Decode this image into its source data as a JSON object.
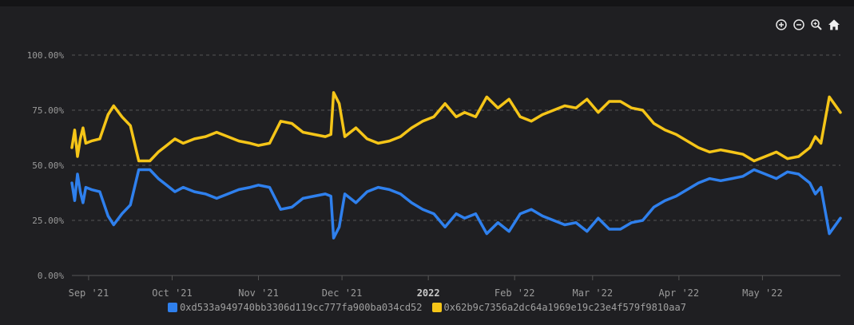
{
  "colors": {
    "background": "#1f1f22",
    "grid": "#555555",
    "axis_text": "#9a9a9a",
    "series_blue": "#2f80ed",
    "series_yellow": "#f5c518"
  },
  "toolbar": {
    "icons": [
      "zoom-in-icon",
      "zoom-out-icon",
      "zoom-selection-icon",
      "home-reset-icon"
    ]
  },
  "chart_data": {
    "type": "line",
    "title": "",
    "xlabel": "",
    "ylabel": "",
    "ylim": [
      0,
      100
    ],
    "y_ticks": [
      "0.00%",
      "25.00%",
      "50.00%",
      "75.00%",
      "100.00%"
    ],
    "x_ticks": [
      "Sep '21",
      "Oct '21",
      "Nov '21",
      "Dec '21",
      "2022",
      "Feb '22",
      "Mar '22",
      "Apr '22",
      "May '22"
    ],
    "x_tick_positions": [
      "2021-09-01",
      "2021-10-01",
      "2021-11-01",
      "2021-12-01",
      "2022-01-01",
      "2022-02-01",
      "2022-03-01",
      "2022-04-01",
      "2022-05-01"
    ],
    "xlim": [
      "2021-08-26",
      "2022-05-29"
    ],
    "grid": true,
    "legend_position": "bottom",
    "series": [
      {
        "name": "0xd533a949740bb3306d119cc777fa900ba034cd52",
        "color": "#2f80ed",
        "x": [
          "2021-08-26",
          "2021-08-27",
          "2021-08-28",
          "2021-08-29",
          "2021-08-30",
          "2021-08-31",
          "2021-09-02",
          "2021-09-05",
          "2021-09-08",
          "2021-09-10",
          "2021-09-13",
          "2021-09-16",
          "2021-09-19",
          "2021-09-21",
          "2021-09-23",
          "2021-09-26",
          "2021-09-29",
          "2021-10-02",
          "2021-10-05",
          "2021-10-09",
          "2021-10-13",
          "2021-10-17",
          "2021-10-21",
          "2021-10-25",
          "2021-10-29",
          "2021-11-01",
          "2021-11-05",
          "2021-11-09",
          "2021-11-13",
          "2021-11-17",
          "2021-11-21",
          "2021-11-25",
          "2021-11-27",
          "2021-11-28",
          "2021-11-30",
          "2021-12-02",
          "2021-12-06",
          "2021-12-10",
          "2021-12-14",
          "2021-12-18",
          "2021-12-22",
          "2021-12-26",
          "2021-12-30",
          "2022-01-03",
          "2022-01-07",
          "2022-01-11",
          "2022-01-14",
          "2022-01-18",
          "2022-01-22",
          "2022-01-26",
          "2022-01-30",
          "2022-02-03",
          "2022-02-07",
          "2022-02-11",
          "2022-02-15",
          "2022-02-19",
          "2022-02-23",
          "2022-02-27",
          "2022-03-03",
          "2022-03-07",
          "2022-03-11",
          "2022-03-15",
          "2022-03-19",
          "2022-03-23",
          "2022-03-27",
          "2022-03-31",
          "2022-04-04",
          "2022-04-08",
          "2022-04-12",
          "2022-04-16",
          "2022-04-20",
          "2022-04-24",
          "2022-04-28",
          "2022-05-02",
          "2022-05-06",
          "2022-05-10",
          "2022-05-14",
          "2022-05-18",
          "2022-05-20",
          "2022-05-22",
          "2022-05-25",
          "2022-05-29"
        ],
        "values": [
          42,
          34,
          46,
          38,
          33,
          40,
          39,
          38,
          27,
          23,
          28,
          32,
          48,
          48,
          48,
          44,
          41,
          38,
          40,
          38,
          37,
          35,
          37,
          39,
          40,
          41,
          40,
          30,
          31,
          35,
          36,
          37,
          36,
          17,
          22,
          37,
          33,
          38,
          40,
          39,
          37,
          33,
          30,
          28,
          22,
          28,
          26,
          28,
          19,
          24,
          20,
          28,
          30,
          27,
          25,
          23,
          24,
          20,
          26,
          21,
          21,
          24,
          25,
          31,
          34,
          36,
          39,
          42,
          44,
          43,
          44,
          45,
          48,
          46,
          44,
          47,
          46,
          42,
          37,
          40,
          19,
          26
        ]
      },
      {
        "name": "0x62b9c7356a2dc64a1969e19c23e4f579f9810aa7",
        "color": "#f5c518",
        "x": [
          "2021-08-26",
          "2021-08-27",
          "2021-08-28",
          "2021-08-29",
          "2021-08-30",
          "2021-08-31",
          "2021-09-02",
          "2021-09-05",
          "2021-09-08",
          "2021-09-10",
          "2021-09-13",
          "2021-09-16",
          "2021-09-19",
          "2021-09-21",
          "2021-09-23",
          "2021-09-26",
          "2021-09-29",
          "2021-10-02",
          "2021-10-05",
          "2021-10-09",
          "2021-10-13",
          "2021-10-17",
          "2021-10-21",
          "2021-10-25",
          "2021-10-29",
          "2021-11-01",
          "2021-11-05",
          "2021-11-09",
          "2021-11-13",
          "2021-11-17",
          "2021-11-21",
          "2021-11-25",
          "2021-11-27",
          "2021-11-28",
          "2021-11-30",
          "2021-12-02",
          "2021-12-06",
          "2021-12-10",
          "2021-12-14",
          "2021-12-18",
          "2021-12-22",
          "2021-12-26",
          "2021-12-30",
          "2022-01-03",
          "2022-01-07",
          "2022-01-11",
          "2022-01-14",
          "2022-01-18",
          "2022-01-22",
          "2022-01-26",
          "2022-01-30",
          "2022-02-03",
          "2022-02-07",
          "2022-02-11",
          "2022-02-15",
          "2022-02-19",
          "2022-02-23",
          "2022-02-27",
          "2022-03-03",
          "2022-03-07",
          "2022-03-11",
          "2022-03-15",
          "2022-03-19",
          "2022-03-23",
          "2022-03-27",
          "2022-03-31",
          "2022-04-04",
          "2022-04-08",
          "2022-04-12",
          "2022-04-16",
          "2022-04-20",
          "2022-04-24",
          "2022-04-28",
          "2022-05-02",
          "2022-05-06",
          "2022-05-10",
          "2022-05-14",
          "2022-05-18",
          "2022-05-20",
          "2022-05-22",
          "2022-05-25",
          "2022-05-29"
        ],
        "values": [
          58,
          66,
          54,
          62,
          67,
          60,
          61,
          62,
          73,
          77,
          72,
          68,
          52,
          52,
          52,
          56,
          59,
          62,
          60,
          62,
          63,
          65,
          63,
          61,
          60,
          59,
          60,
          70,
          69,
          65,
          64,
          63,
          64,
          83,
          78,
          63,
          67,
          62,
          60,
          61,
          63,
          67,
          70,
          72,
          78,
          72,
          74,
          72,
          81,
          76,
          80,
          72,
          70,
          73,
          75,
          77,
          76,
          80,
          74,
          79,
          79,
          76,
          75,
          69,
          66,
          64,
          61,
          58,
          56,
          57,
          56,
          55,
          52,
          54,
          56,
          53,
          54,
          58,
          63,
          60,
          81,
          74
        ]
      }
    ]
  }
}
